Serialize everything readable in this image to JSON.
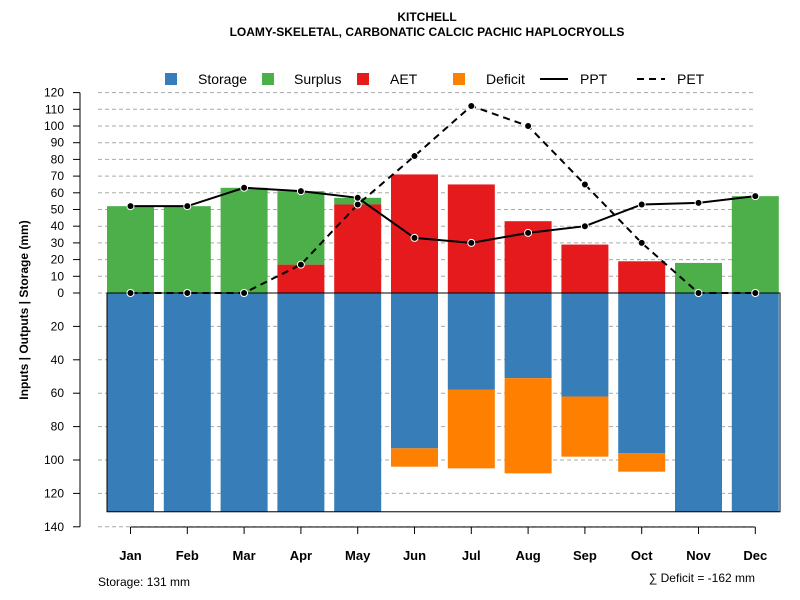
{
  "chart_data": {
    "type": "bar",
    "title": "KITCHELL",
    "subtitle": "LOAMY-SKELETAL, CARBONATIC CALCIC PACHIC HAPLOCRYOLLS",
    "ylabel": "Inputs | Outputs | Storage    (mm)",
    "categories": [
      "Jan",
      "Feb",
      "Mar",
      "Apr",
      "May",
      "Jun",
      "Jul",
      "Aug",
      "Sep",
      "Oct",
      "Nov",
      "Dec"
    ],
    "ylim": [
      -140,
      120
    ],
    "yticks_upper": [
      0,
      10,
      20,
      30,
      40,
      50,
      60,
      70,
      80,
      90,
      100,
      110,
      120
    ],
    "yticks_lower": [
      20,
      40,
      60,
      80,
      100,
      120,
      140
    ],
    "legend": [
      "Storage",
      "Surplus",
      "AET",
      "Deficit",
      "PPT",
      "PET"
    ],
    "colors": {
      "Storage": "#377eb8",
      "Surplus": "#4daf4a",
      "AET": "#e41a1c",
      "Deficit": "#ff7f00",
      "PPT": "#000000",
      "PET": "#000000"
    },
    "series": [
      {
        "name": "AET",
        "values": [
          0,
          0,
          0,
          17,
          53,
          71,
          65,
          43,
          29,
          19,
          0,
          0
        ]
      },
      {
        "name": "Surplus",
        "values": [
          52,
          52,
          63,
          44,
          4,
          0,
          0,
          0,
          0,
          0,
          18,
          58
        ]
      },
      {
        "name": "Storage",
        "values": [
          131,
          131,
          131,
          131,
          131,
          93,
          58,
          51,
          62,
          96,
          131,
          131
        ]
      },
      {
        "name": "Deficit",
        "values": [
          0,
          0,
          0,
          0,
          0,
          11,
          47,
          57,
          36,
          11,
          0,
          0
        ]
      },
      {
        "name": "PPT",
        "values": [
          52,
          52,
          63,
          61,
          57,
          33,
          30,
          36,
          40,
          53,
          54,
          58
        ]
      },
      {
        "name": "PET",
        "values": [
          0,
          0,
          0,
          17,
          53,
          82,
          112,
          100,
          65,
          30,
          0,
          0
        ]
      }
    ],
    "footer_left": "Storage: 131 mm",
    "footer_right": "∑ Deficit = -162 mm"
  }
}
